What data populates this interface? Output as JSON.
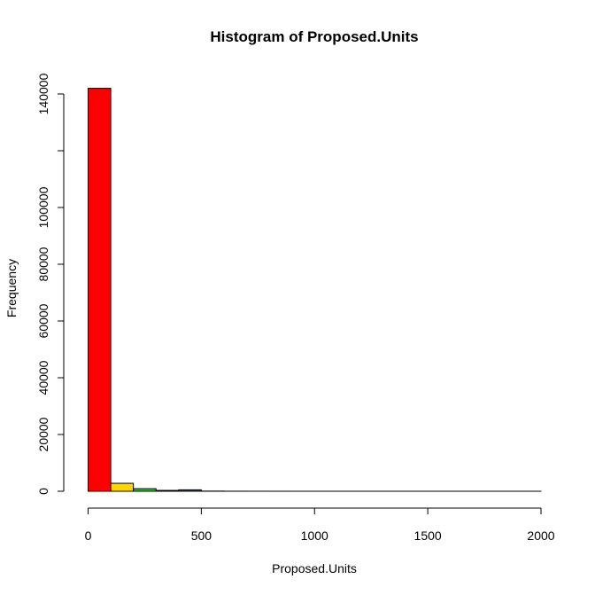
{
  "chart_data": {
    "type": "bar",
    "title": "Histogram of Proposed.Units",
    "xlabel": "Proposed.Units",
    "ylabel": "Frequency",
    "xlim": [
      0,
      2000
    ],
    "ylim": [
      0,
      140000
    ],
    "x_ticks": [
      0,
      500,
      1000,
      1500,
      2000
    ],
    "x_tick_labels": [
      "0",
      "500",
      "1000",
      "1500",
      "2000"
    ],
    "y_ticks": [
      0,
      20000,
      40000,
      60000,
      80000,
      100000,
      120000,
      140000
    ],
    "y_tick_labels": [
      "0",
      "20000",
      "40000",
      "60000",
      "80000",
      "100000",
      "",
      "140000"
    ],
    "bin_width": 100,
    "bins": [
      {
        "start": 0,
        "end": 100,
        "count": 142000,
        "color": "#FF0000"
      },
      {
        "start": 100,
        "end": 200,
        "count": 2800,
        "color": "#FFD700"
      },
      {
        "start": 200,
        "end": 300,
        "count": 900,
        "color": "#32CD32"
      },
      {
        "start": 300,
        "end": 400,
        "count": 300,
        "color": "#00CED1"
      },
      {
        "start": 400,
        "end": 500,
        "count": 500,
        "color": "#1E56C8"
      },
      {
        "start": 500,
        "end": 600,
        "count": 60,
        "color": "#7B00FF"
      },
      {
        "start": 600,
        "end": 700,
        "count": 20,
        "color": "#FF00FF"
      },
      {
        "start": 700,
        "end": 800,
        "count": 10,
        "color": "#FF0000"
      },
      {
        "start": 800,
        "end": 900,
        "count": 5,
        "color": "#FFD700"
      },
      {
        "start": 900,
        "end": 1000,
        "count": 3,
        "color": "#32CD32"
      },
      {
        "start": 1000,
        "end": 1100,
        "count": 2,
        "color": "#00CED1"
      },
      {
        "start": 1100,
        "end": 1200,
        "count": 1,
        "color": "#1E56C8"
      },
      {
        "start": 1200,
        "end": 1300,
        "count": 1,
        "color": "#7B00FF"
      },
      {
        "start": 1300,
        "end": 1400,
        "count": 1,
        "color": "#FF00FF"
      },
      {
        "start": 1400,
        "end": 1500,
        "count": 1,
        "color": "#FF0000"
      },
      {
        "start": 1500,
        "end": 1600,
        "count": 1,
        "color": "#FFD700"
      },
      {
        "start": 1600,
        "end": 1700,
        "count": 1,
        "color": "#32CD32"
      },
      {
        "start": 1700,
        "end": 1800,
        "count": 1,
        "color": "#00CED1"
      },
      {
        "start": 1800,
        "end": 1900,
        "count": 1,
        "color": "#1E56C8"
      },
      {
        "start": 1900,
        "end": 2000,
        "count": 1,
        "color": "#7B00FF"
      }
    ]
  }
}
